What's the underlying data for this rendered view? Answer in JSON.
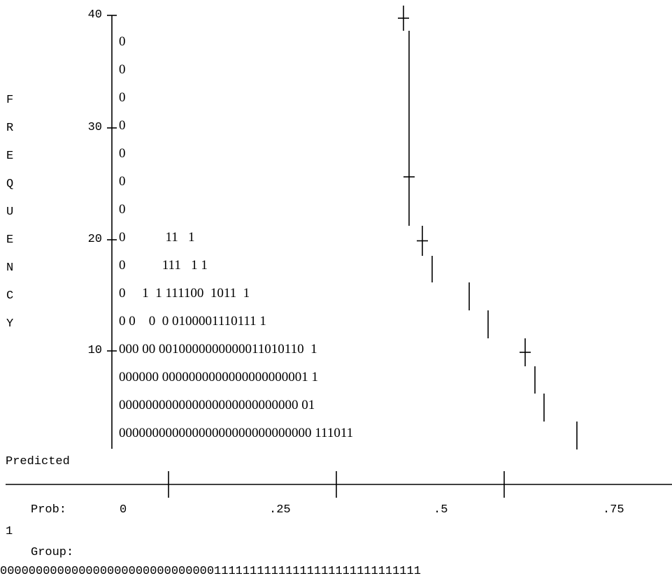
{
  "chart_data": {
    "type": "table",
    "ylabel": "FREQUENCY",
    "y_ticks": [
      "40",
      "30",
      "20",
      "10"
    ],
    "histogram_rows": [
      "0",
      "0",
      "0",
      "0",
      "0",
      "0",
      "0",
      "0            11   1",
      "0           111   1 1",
      "0     1  1 111100  1011  1",
      "0 0    0  0 0100001110111 1",
      "000 00 0010000000000011010110  1",
      "000000 0000000000000000000001 1",
      "000000000000000000000000000 01",
      "00000000000000000000000000000 111011"
    ],
    "x_axis": {
      "predicted_label": "Predicted",
      "prob_label": "Prob:",
      "prob_ticks": [
        "0",
        ".25",
        ".5",
        ".75"
      ],
      "prob_end": "1",
      "group_label": "Group:",
      "group_sequence": "00000000000000000000000000000011111111111111111111111111111"
    }
  }
}
